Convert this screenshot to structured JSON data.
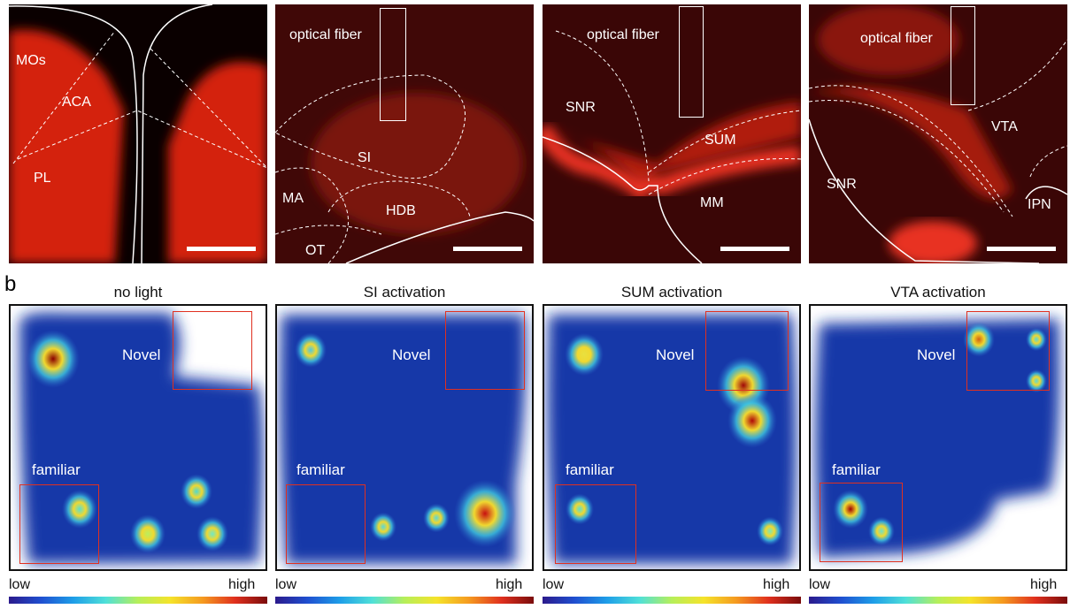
{
  "panel_a": [
    {
      "labels": [
        "MOs",
        "ACA",
        "PL"
      ]
    },
    {
      "labels": [
        "optical fiber",
        "SI",
        "MA",
        "HDB",
        "OT"
      ]
    },
    {
      "labels": [
        "optical fiber",
        "SNR",
        "SUM",
        "MM"
      ]
    },
    {
      "labels": [
        "optical fiber",
        "VTA",
        "SNR",
        "IPN"
      ]
    }
  ],
  "panel_b": {
    "label": "b",
    "titles": [
      "no light",
      "SI activation",
      "SUM  activation",
      "VTA  activation"
    ],
    "novel": "Novel",
    "familiar": "familiar",
    "low": "low",
    "high": "high"
  }
}
